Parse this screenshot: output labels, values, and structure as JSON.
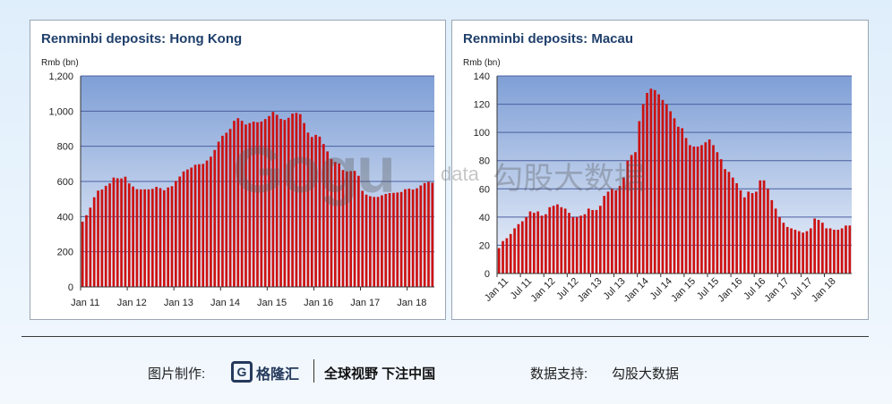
{
  "charts": [
    {
      "title": "Renminbi deposits: Hong Kong",
      "unit_label": "Rmb (bn)",
      "chart_data": {
        "type": "bar",
        "title": "Renminbi deposits: Hong Kong",
        "ylabel": "Rmb (bn)",
        "ylim": [
          0,
          1200
        ],
        "yticks": [
          0,
          200,
          400,
          600,
          800,
          1000,
          1200
        ],
        "ytick_labels": [
          "0",
          "200",
          "400",
          "600",
          "800",
          "1,000",
          "1,200"
        ],
        "xtick_labels": [
          "Jan 11",
          "Jan 12",
          "Jan 13",
          "Jan 14",
          "Jan 15",
          "Jan 16",
          "Jan 17",
          "Jan 18"
        ],
        "xtick_positions": [
          0,
          12,
          24,
          36,
          48,
          60,
          72,
          84
        ],
        "grid": true,
        "color": "#cc1111",
        "values": [
          371,
          408,
          451,
          510,
          548,
          554,
          575,
          589,
          622,
          618,
          617,
          627,
          589,
          571,
          556,
          555,
          555,
          555,
          558,
          569,
          562,
          550,
          566,
          573,
          603,
          628,
          657,
          668,
          679,
          695,
          698,
          700,
          719,
          741,
          779,
          826,
          860,
          877,
          899,
          945,
          960,
          945,
          924,
          932,
          940,
          937,
          941,
          955,
          972,
          996,
          979,
          956,
          950,
          962,
          986,
          990,
          983,
          932,
          878,
          853,
          865,
          855,
          813,
          771,
          728,
          711,
          702,
          665,
          657,
          659,
          660,
          632,
          547,
          525,
          516,
          512,
          512,
          521,
          529,
          534,
          535,
          537,
          540,
          556,
          559,
          554,
          561,
          577,
          591,
          597,
          593
        ]
      }
    },
    {
      "title": "Renminbi deposits: Macau",
      "unit_label": "Rmb (bn)",
      "chart_data": {
        "type": "bar",
        "title": "Renminbi deposits: Macau",
        "ylabel": "Rmb (bn)",
        "ylim": [
          0,
          140
        ],
        "yticks": [
          0,
          20,
          40,
          60,
          80,
          100,
          120,
          140
        ],
        "ytick_labels": [
          "0",
          "20",
          "40",
          "60",
          "80",
          "100",
          "120",
          "140"
        ],
        "xtick_labels": [
          "Jan 11",
          "Jul 11",
          "Jan 12",
          "Jul 12",
          "Jan 13",
          "Jul 13",
          "Jan 14",
          "Jul 14",
          "Jan 15",
          "Jul 15",
          "Jan 16",
          "Jul 16",
          "Jan 17",
          "Jul 17",
          "Jan 18"
        ],
        "xtick_positions": [
          0,
          6,
          12,
          18,
          24,
          30,
          36,
          42,
          48,
          54,
          60,
          66,
          72,
          78,
          84
        ],
        "grid": true,
        "color": "#cc1111",
        "values": [
          18,
          23,
          25,
          28,
          32,
          35,
          37,
          40,
          44,
          43,
          44,
          41,
          42,
          47,
          48,
          49,
          47,
          46,
          43,
          40,
          40,
          41,
          42,
          46,
          45,
          45,
          48,
          55,
          58,
          60,
          59,
          62,
          68,
          80,
          84,
          86,
          108,
          120,
          128,
          131,
          130,
          127,
          123,
          120,
          115,
          110,
          104,
          103,
          96,
          91,
          90,
          90,
          91,
          93,
          95,
          91,
          86,
          81,
          74,
          72,
          68,
          64,
          59,
          54,
          58,
          57,
          58,
          66,
          66,
          60,
          52,
          46,
          40,
          36,
          33,
          32,
          31,
          30,
          29,
          30,
          32,
          39,
          38,
          36,
          32,
          32,
          31,
          31,
          32,
          34,
          34
        ]
      }
    }
  ],
  "watermark": {
    "logo": "Gogu",
    "sub": "data",
    "cn": "勾股大数据"
  },
  "footer": {
    "made_by_label": "图片制作:",
    "brand_name": "格隆汇",
    "slogan": "全球视野 下注中国",
    "support_label": "数据支持:",
    "support_value": "勾股大数据"
  }
}
